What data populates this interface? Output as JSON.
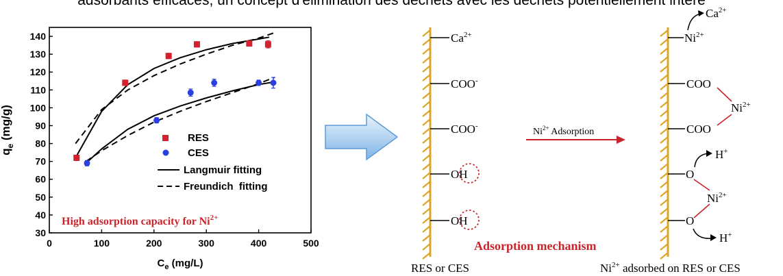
{
  "caption_top": "adsorbants efficaces, un concept d'élimination des déchets avec les déchets potentiellement intére",
  "chart_data": {
    "type": "scatter",
    "title": "",
    "ylabel_main": "q",
    "ylabel_sub": "e",
    "ylabel_unit": " (mg/g)",
    "xlabel_main": "C",
    "xlabel_sub": "e",
    "xlabel_unit": " (mg/L)",
    "xlim": [
      0,
      500
    ],
    "ylim": [
      30,
      145
    ],
    "x_ticks": [
      0,
      100,
      200,
      300,
      400,
      500
    ],
    "y_ticks": [
      30,
      40,
      50,
      60,
      70,
      80,
      90,
      100,
      110,
      120,
      130,
      140
    ],
    "annotation_main": "High adsorption capacity for Ni",
    "annotation_sup": "2+",
    "series": [
      {
        "name": "RES",
        "marker": "square",
        "color": "#d3212d",
        "points": [
          {
            "x": 52,
            "y": 72,
            "err": 1.5
          },
          {
            "x": 145,
            "y": 114,
            "err": 1.5
          },
          {
            "x": 228,
            "y": 129,
            "err": 1.5
          },
          {
            "x": 282,
            "y": 135.5,
            "err": 1.5
          },
          {
            "x": 382,
            "y": 136,
            "err": 1.5
          },
          {
            "x": 418,
            "y": 135.5,
            "err": 2
          }
        ]
      },
      {
        "name": "CES",
        "marker": "circle",
        "color": "#2b3ee0",
        "points": [
          {
            "x": 72,
            "y": 69,
            "err": 1.5
          },
          {
            "x": 205,
            "y": 93,
            "err": 1.5
          },
          {
            "x": 270,
            "y": 108.5,
            "err": 2
          },
          {
            "x": 315,
            "y": 114,
            "err": 2
          },
          {
            "x": 400,
            "y": 114,
            "err": 1.5
          },
          {
            "x": 428,
            "y": 114,
            "err": 3
          }
        ]
      }
    ],
    "fits": [
      {
        "name": "Langmuir fitting",
        "style": "solid"
      },
      {
        "name": "Freundich  fitting",
        "style": "dashed"
      }
    ],
    "fit_curves": {
      "res_langmuir": [
        [
          50,
          72
        ],
        [
          100,
          98
        ],
        [
          150,
          113
        ],
        [
          200,
          122
        ],
        [
          250,
          128
        ],
        [
          300,
          132.5
        ],
        [
          350,
          136
        ],
        [
          400,
          138.5
        ],
        [
          420,
          139.5
        ]
      ],
      "res_freundlich": [
        [
          50,
          80
        ],
        [
          100,
          99
        ],
        [
          150,
          110
        ],
        [
          200,
          118
        ],
        [
          250,
          124.5
        ],
        [
          300,
          130
        ],
        [
          350,
          135
        ],
        [
          400,
          139
        ],
        [
          430,
          142
        ]
      ],
      "ces_langmuir": [
        [
          70,
          69
        ],
        [
          100,
          77
        ],
        [
          150,
          88
        ],
        [
          200,
          95.5
        ],
        [
          250,
          101
        ],
        [
          300,
          105.5
        ],
        [
          350,
          109.5
        ],
        [
          400,
          113
        ],
        [
          430,
          114.5
        ]
      ],
      "ces_freundlich": [
        [
          70,
          70
        ],
        [
          100,
          76
        ],
        [
          150,
          84.5
        ],
        [
          200,
          92
        ],
        [
          250,
          98
        ],
        [
          300,
          103.5
        ],
        [
          350,
          108.5
        ],
        [
          400,
          113.5
        ],
        [
          430,
          117
        ]
      ]
    }
  },
  "mechanism": {
    "left_groups": [
      {
        "main": "Ca",
        "sup": "2+"
      },
      {
        "main": "COO",
        "sup": "-"
      },
      {
        "main": "COO",
        "sup": "-"
      },
      {
        "main": "OH",
        "sup": ""
      },
      {
        "main": "OH",
        "sup": ""
      }
    ],
    "left_label": "RES or CES",
    "right_label_main": "Ni",
    "right_label_sup": "2+",
    "right_label_rest": " adsorbed on RES or CES",
    "arrow_label_main": "Ni",
    "arrow_label_sup": "2+",
    "arrow_label_rest": " Adsorption",
    "title": "Adsorption mechanism",
    "right": {
      "released_ca_main": "Ca",
      "released_ca_sup": "2+",
      "ni1_main": "Ni",
      "ni1_sup": "2+",
      "coo1": "COO",
      "coo2": "COO",
      "ni2_main": "Ni",
      "ni2_sup": "2+",
      "o1": "O",
      "h1_main": "H",
      "h1_sup": "+",
      "ni3_main": "Ni",
      "ni3_sup": "2+",
      "o2": "O",
      "h2_main": "H",
      "h2_sup": "+"
    }
  },
  "colors": {
    "res": "#d3212d",
    "ces": "#2b3ee0",
    "annotation": "#c8242b",
    "surface": "#dca52a",
    "bond": "#c8242b",
    "arrow_fill_top": "#e8f3fc",
    "arrow_fill_bottom": "#7fb5e6",
    "arrow_stroke": "#5d9bd5"
  }
}
